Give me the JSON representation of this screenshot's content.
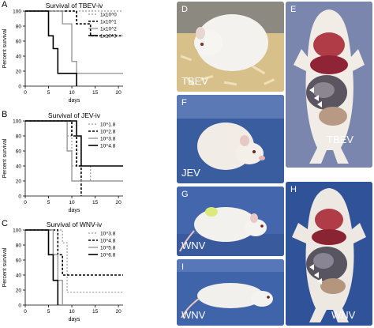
{
  "panels": {
    "A": "A",
    "B": "B",
    "C": "C",
    "D": "D",
    "E": "E",
    "F": "F",
    "G": "G",
    "H": "H",
    "I": "I"
  },
  "photo_labels": {
    "D": "TBEV",
    "E": "TBEV",
    "F": "JEV",
    "G": "WNV",
    "H": "WNV",
    "I": "WNV"
  },
  "chart_data": [
    {
      "type": "line",
      "title": "Survival of TBEV-iv",
      "xlabel": "days",
      "ylabel": "Percent survival",
      "xticks": [
        "0",
        "5",
        "10",
        "15",
        "20"
      ],
      "yticks": [
        "0",
        "20",
        "40",
        "60",
        "80",
        "100"
      ],
      "xlim": [
        0,
        21
      ],
      "ylim": [
        0,
        100
      ],
      "series": [
        {
          "name": "1x10^0",
          "color": "#9a9a9a",
          "dash": "2,2",
          "x": [
            0,
            21
          ],
          "y": [
            100,
            100
          ]
        },
        {
          "name": "1x10^1",
          "color": "#000000",
          "dash": "3,2",
          "x": [
            0,
            6,
            6,
            11,
            11,
            14,
            14,
            21
          ],
          "y": [
            100,
            100,
            100,
            100,
            83,
            83,
            67,
            67
          ]
        },
        {
          "name": "1x10^2",
          "color": "#9a9a9a",
          "dash": "",
          "x": [
            0,
            8,
            8,
            10,
            10,
            11,
            11,
            21
          ],
          "y": [
            100,
            100,
            83,
            83,
            33,
            33,
            17,
            17
          ]
        },
        {
          "name": "1x10^3",
          "color": "#000000",
          "dash": "",
          "x": [
            0,
            5,
            5,
            6,
            6,
            7,
            7,
            11,
            11
          ],
          "y": [
            100,
            100,
            67,
            67,
            50,
            50,
            17,
            17,
            0
          ]
        }
      ]
    },
    {
      "type": "line",
      "title": "Survival of JEV-iv",
      "xlabel": "days",
      "ylabel": "Percent survival",
      "xticks": [
        "0",
        "5",
        "10",
        "15",
        "20"
      ],
      "yticks": [
        "0",
        "20",
        "40",
        "60",
        "80",
        "100"
      ],
      "xlim": [
        0,
        21
      ],
      "ylim": [
        0,
        100
      ],
      "series": [
        {
          "name": "10^1.8",
          "color": "#9a9a9a",
          "dash": "2,2",
          "x": [
            0,
            9,
            9,
            10,
            10,
            14,
            14
          ],
          "y": [
            100,
            100,
            80,
            80,
            40,
            40,
            20
          ]
        },
        {
          "name": "10^2.8",
          "color": "#000000",
          "dash": "3,2",
          "x": [
            0,
            10,
            10,
            11,
            11,
            12,
            12
          ],
          "y": [
            100,
            100,
            80,
            80,
            40,
            40,
            0
          ]
        },
        {
          "name": "10^3.8",
          "color": "#9a9a9a",
          "dash": "",
          "x": [
            0,
            9,
            9,
            10,
            10,
            21
          ],
          "y": [
            100,
            100,
            60,
            60,
            20,
            20
          ]
        },
        {
          "name": "10^4.8",
          "color": "#000000",
          "dash": "",
          "x": [
            0,
            11,
            11,
            12,
            12,
            21
          ],
          "y": [
            100,
            100,
            80,
            80,
            40,
            40
          ]
        }
      ]
    },
    {
      "type": "line",
      "title": "Survival of WNV-iv",
      "xlabel": "days",
      "ylabel": "Percent survival",
      "xticks": [
        "0",
        "5",
        "10",
        "15",
        "20"
      ],
      "yticks": [
        "0",
        "20",
        "40",
        "60",
        "80",
        "100"
      ],
      "xlim": [
        0,
        21
      ],
      "ylim": [
        0,
        100
      ],
      "series": [
        {
          "name": "10^3.8",
          "color": "#9a9a9a",
          "dash": "2,2",
          "x": [
            0,
            8,
            8,
            9,
            9,
            21
          ],
          "y": [
            100,
            100,
            83,
            83,
            17,
            17
          ]
        },
        {
          "name": "10^4.8",
          "color": "#000000",
          "dash": "3,2",
          "x": [
            0,
            7,
            7,
            8,
            8,
            21
          ],
          "y": [
            100,
            100,
            67,
            67,
            40,
            40
          ]
        },
        {
          "name": "10^5.8",
          "color": "#9a9a9a",
          "dash": "",
          "x": [
            0,
            6,
            6,
            7,
            7,
            8,
            8
          ],
          "y": [
            100,
            100,
            67,
            67,
            33,
            33,
            0
          ]
        },
        {
          "name": "10^6.8",
          "color": "#000000",
          "dash": "",
          "x": [
            0,
            5,
            5,
            6,
            6,
            7,
            7
          ],
          "y": [
            100,
            100,
            67,
            67,
            33,
            33,
            0
          ]
        }
      ]
    }
  ]
}
